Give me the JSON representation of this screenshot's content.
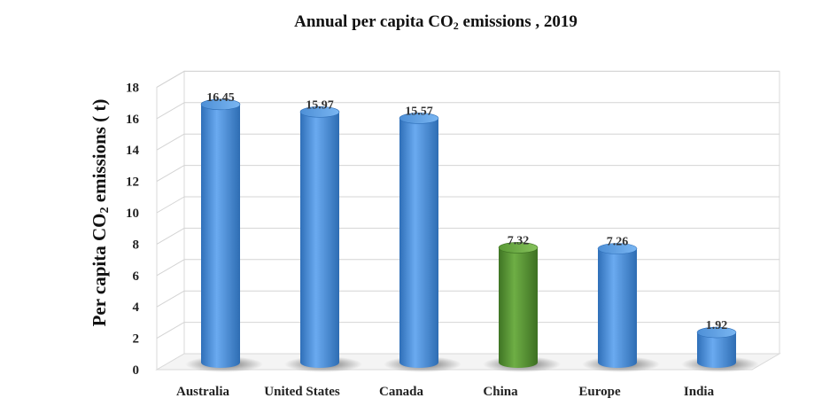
{
  "chart_data": {
    "type": "bar",
    "title_main": "Annual per capita CO",
    "title_sub": "2",
    "title_tail": " emissions , 2019",
    "ylabel_main": "Per capita CO",
    "ylabel_sub": "2",
    "ylabel_tail": " emissions ( t)",
    "xlabel": "",
    "categories": [
      "Australia",
      "United States",
      "Canada",
      "China",
      "Europe",
      "India"
    ],
    "values": [
      16.45,
      15.97,
      15.57,
      7.32,
      7.26,
      1.92
    ],
    "data_labels": [
      "16.45",
      "15.97",
      "15.57",
      "7.32",
      "7.26",
      "1.92"
    ],
    "ylim": [
      0,
      18
    ],
    "yticks": [
      0,
      2,
      4,
      6,
      8,
      10,
      12,
      14,
      16,
      18
    ],
    "grid": true,
    "legend": "none",
    "bar_colors": [
      "#4a8fd9",
      "#4a8fd9",
      "#4a8fd9",
      "#5a9a35",
      "#4a8fd9",
      "#4a8fd9"
    ]
  }
}
